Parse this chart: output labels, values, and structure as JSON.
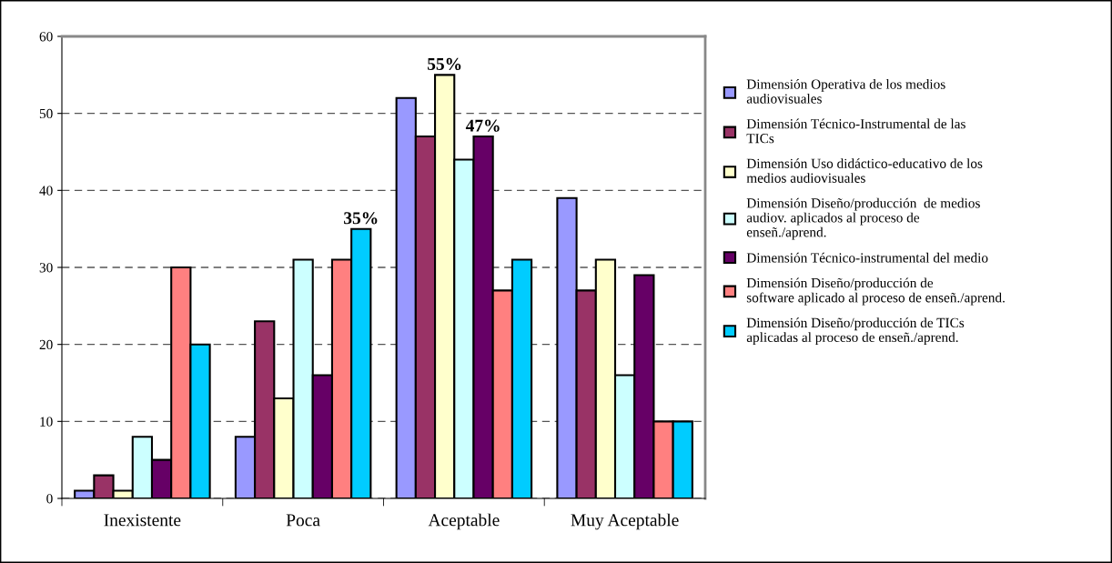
{
  "chart_data": {
    "type": "bar",
    "categories": [
      "Inexistente",
      "Poca",
      "Aceptable",
      "Muy Aceptable"
    ],
    "series": [
      {
        "name": "Dimensión Operativa de los medios\naudiovisuales",
        "color": "#9999ff",
        "values": [
          1,
          8,
          52,
          39
        ]
      },
      {
        "name": "Dimensión Técnico-Instrumental de las\nTICs",
        "color": "#993366",
        "values": [
          3,
          23,
          47,
          27
        ]
      },
      {
        "name": "Dimensión Uso didáctico-educativo de los\nmedios audiovisuales",
        "color": "#ffffcc",
        "values": [
          1,
          13,
          55,
          31
        ],
        "value_labels": [
          null,
          null,
          "55%",
          null
        ]
      },
      {
        "name": "Dimensión Diseño/producción  de medios\naudiov. aplicados al proceso de\nenseñ./aprend.",
        "color": "#ccffff",
        "values": [
          8,
          31,
          44,
          16
        ]
      },
      {
        "name": "Dimensión Técnico-instrumental del medio",
        "color": "#660066",
        "values": [
          5,
          16,
          47,
          29
        ],
        "value_labels": [
          null,
          null,
          "47%",
          null
        ]
      },
      {
        "name": "Dimensión Diseño/producción de\nsoftware aplicado al proceso de enseñ./aprend.",
        "color": "#ff8080",
        "values": [
          30,
          31,
          27,
          10
        ]
      },
      {
        "name": "Dimensión Diseño/producción de TICs\naplicadas al proceso de enseñ./aprend.",
        "color": "#00ccff",
        "values": [
          20,
          35,
          31,
          10
        ],
        "value_labels": [
          null,
          "35%",
          null,
          null
        ]
      }
    ],
    "ylim": [
      0,
      60
    ],
    "yticks": [
      0,
      10,
      20,
      30,
      40,
      50,
      60
    ],
    "grid": "y",
    "legend": "right"
  }
}
